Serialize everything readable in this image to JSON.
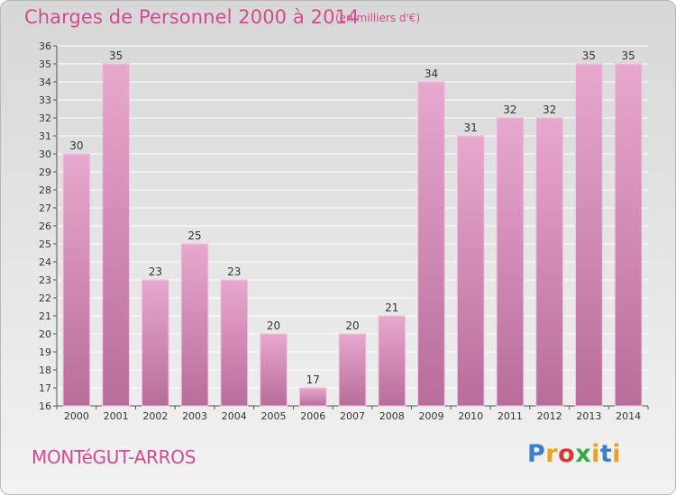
{
  "title": "Charges de Personnel 2000 à 2014",
  "subtitle": "(en milliers d'€)",
  "commune": "MONTéGUT-ARROS",
  "logo": {
    "letters": [
      "P",
      "r",
      "o",
      "x",
      "i",
      "t",
      "i"
    ],
    "colors": [
      "#3a7fc8",
      "#e8a21c",
      "#d43a30",
      "#3aa64a",
      "#e8a21c",
      "#3a7fc8",
      "#e8a21c"
    ]
  },
  "colors": {
    "title": "#d34b8f",
    "bar_top": "#e8a8cd",
    "bar_bottom": "#b86d9b",
    "grid": "#ffffff"
  },
  "chart_data": {
    "type": "bar",
    "categories": [
      "2000",
      "2001",
      "2002",
      "2003",
      "2004",
      "2005",
      "2006",
      "2007",
      "2008",
      "2009",
      "2010",
      "2011",
      "2012",
      "2013",
      "2014"
    ],
    "values": [
      30,
      35,
      23,
      25,
      23,
      20,
      17,
      20,
      21,
      34,
      31,
      32,
      32,
      35,
      35
    ],
    "ylim": [
      16,
      36
    ],
    "yticks": [
      16,
      17,
      18,
      19,
      20,
      21,
      22,
      23,
      24,
      25,
      26,
      27,
      28,
      29,
      30,
      31,
      32,
      33,
      34,
      35,
      36
    ],
    "grid": true,
    "data_labels": true
  }
}
